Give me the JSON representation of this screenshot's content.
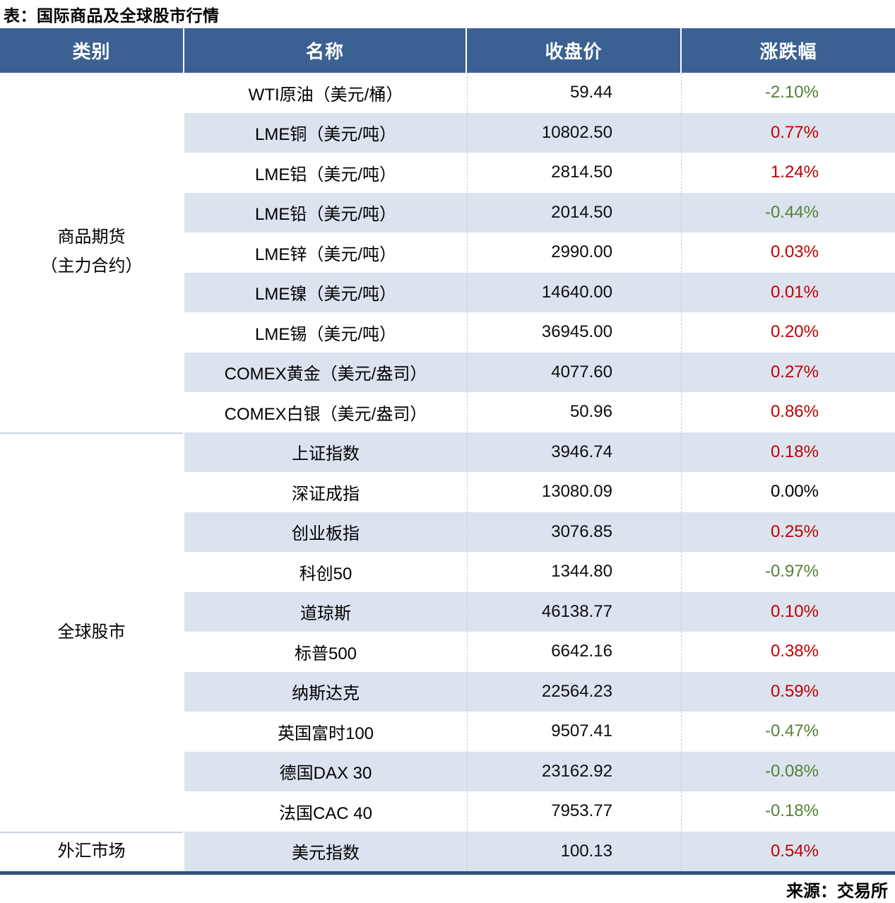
{
  "title": "表：国际商品及全球股市行情",
  "source": "来源：交易所",
  "colors": {
    "header_bg": "#3a6191",
    "band_row_bg": "#dbe3ee",
    "white_row_bg": "#ffffff",
    "positive_change": "#c00000",
    "negative_change": "#538135",
    "flat_change": "#000000",
    "bottom_border": "#31527b"
  },
  "chart_data": {
    "type": "table",
    "title": "表：国际商品及全球股市行情",
    "columns": [
      "类别",
      "名称",
      "收盘价",
      "涨跌幅"
    ],
    "categories": [
      {
        "label": "商品期货\n（主力合约）",
        "rowspan": 9
      },
      {
        "label": "全球股市",
        "rowspan": 10
      },
      {
        "label": "外汇市场",
        "rowspan": 1
      }
    ],
    "rows": [
      {
        "name": "WTI原油（美元/桶）",
        "close": "59.44",
        "change": "-2.10%",
        "dir": "down"
      },
      {
        "name": "LME铜（美元/吨）",
        "close": "10802.50",
        "change": "0.77%",
        "dir": "up"
      },
      {
        "name": "LME铝（美元/吨）",
        "close": "2814.50",
        "change": "1.24%",
        "dir": "up"
      },
      {
        "name": "LME铅（美元/吨）",
        "close": "2014.50",
        "change": "-0.44%",
        "dir": "down"
      },
      {
        "name": "LME锌（美元/吨）",
        "close": "2990.00",
        "change": "0.03%",
        "dir": "up"
      },
      {
        "name": "LME镍（美元/吨）",
        "close": "14640.00",
        "change": "0.01%",
        "dir": "up"
      },
      {
        "name": "LME锡（美元/吨）",
        "close": "36945.00",
        "change": "0.20%",
        "dir": "up"
      },
      {
        "name": "COMEX黄金（美元/盎司）",
        "close": "4077.60",
        "change": "0.27%",
        "dir": "up"
      },
      {
        "name": "COMEX白银（美元/盎司）",
        "close": "50.96",
        "change": "0.86%",
        "dir": "up"
      },
      {
        "name": "上证指数",
        "close": "3946.74",
        "change": "0.18%",
        "dir": "up"
      },
      {
        "name": "深证成指",
        "close": "13080.09",
        "change": "0.00%",
        "dir": "flat"
      },
      {
        "name": "创业板指",
        "close": "3076.85",
        "change": "0.25%",
        "dir": "up"
      },
      {
        "name": "科创50",
        "close": "1344.80",
        "change": "-0.97%",
        "dir": "down"
      },
      {
        "name": "道琼斯",
        "close": "46138.77",
        "change": "0.10%",
        "dir": "up"
      },
      {
        "name": "标普500",
        "close": "6642.16",
        "change": "0.38%",
        "dir": "up"
      },
      {
        "name": "纳斯达克",
        "close": "22564.23",
        "change": "0.59%",
        "dir": "up"
      },
      {
        "name": "英国富时100",
        "close": "9507.41",
        "change": "-0.47%",
        "dir": "down"
      },
      {
        "name": "德国DAX 30",
        "close": "23162.92",
        "change": "-0.08%",
        "dir": "down"
      },
      {
        "name": "法国CAC 40",
        "close": "7953.77",
        "change": "-0.18%",
        "dir": "down"
      },
      {
        "name": "美元指数",
        "close": "100.13",
        "change": "0.54%",
        "dir": "up"
      }
    ]
  }
}
